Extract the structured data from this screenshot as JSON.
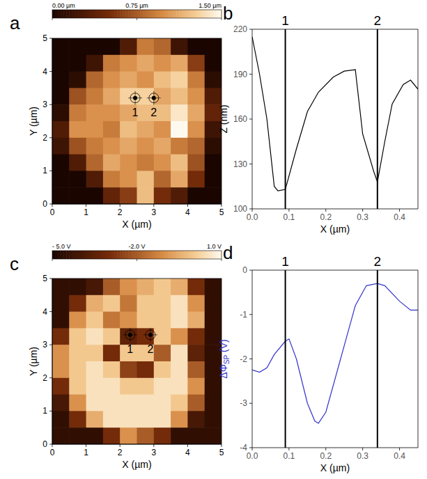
{
  "chart_data": [
    {
      "type": "heatmap",
      "panel": "a",
      "x_label": "X (µm)",
      "y_label": "Y (µm)",
      "xlim": [
        0,
        5
      ],
      "ylim": [
        0,
        5
      ],
      "xticks": [
        0,
        1,
        2,
        3,
        4,
        5
      ],
      "yticks": [
        0,
        1,
        2,
        3,
        4,
        5
      ],
      "colorbar": {
        "range": [
          0,
          1.5
        ],
        "ticks": [
          {
            "value": 0,
            "label": "0.00 µm"
          },
          {
            "value": 0.75,
            "label": "0.75 µm"
          },
          {
            "value": 1.5,
            "label": "1.50 µm"
          }
        ]
      },
      "cells": [
        [
          0,
          0,
          0,
          0,
          0.3,
          0.9,
          0.8,
          0.2,
          0,
          0
        ],
        [
          0,
          0,
          0.2,
          0.9,
          1.0,
          1.1,
          1.0,
          1.1,
          0.6,
          0
        ],
        [
          0,
          0.1,
          0.8,
          1.0,
          1.1,
          1.0,
          1.2,
          1.3,
          0.9,
          0.1
        ],
        [
          0,
          0.7,
          0.9,
          1.1,
          1.3,
          1.3,
          1.1,
          1.2,
          1.0,
          0.3
        ],
        [
          0.1,
          0.9,
          1.0,
          1.0,
          1.1,
          1.2,
          1.2,
          1.4,
          1.1,
          0.4
        ],
        [
          0.3,
          1.0,
          1.0,
          0.9,
          1.2,
          1.1,
          1.0,
          1.5,
          1.0,
          0.2
        ],
        [
          0.2,
          0.7,
          0.9,
          1.0,
          1.1,
          1.0,
          1.1,
          0.9,
          0.8,
          0.1
        ],
        [
          0,
          0.3,
          0.8,
          1.1,
          1.0,
          0.9,
          1.0,
          1.2,
          0.7,
          0
        ],
        [
          0,
          0,
          0.3,
          0.9,
          1.0,
          1.2,
          0.8,
          1.1,
          0.5,
          0
        ],
        [
          0,
          0,
          0,
          0.4,
          0.6,
          1.2,
          0.5,
          0.3,
          0,
          0
        ]
      ],
      "markers": [
        {
          "label": "1",
          "x": 2.45,
          "y": 3.2
        },
        {
          "label": "2",
          "x": 3.0,
          "y": 3.2
        }
      ]
    },
    {
      "type": "line",
      "panel": "b",
      "x_label": "X (µm)",
      "y_label": "Z (nm)",
      "color": "#000000",
      "xlim": [
        0,
        0.45
      ],
      "ylim": [
        100,
        220
      ],
      "xticks": [
        {
          "value": 0,
          "label": "0.0"
        },
        0.1,
        0.2,
        0.3,
        0.4
      ],
      "yticks": [
        100,
        130,
        160,
        190,
        220
      ],
      "x": [
        0,
        0.02,
        0.04,
        0.06,
        0.07,
        0.09,
        0.12,
        0.15,
        0.18,
        0.22,
        0.25,
        0.28,
        0.3,
        0.33,
        0.34,
        0.36,
        0.38,
        0.41,
        0.43,
        0.45
      ],
      "values": [
        215,
        190,
        160,
        115,
        112,
        113,
        140,
        165,
        178,
        188,
        192,
        193,
        150,
        125,
        118,
        145,
        170,
        183,
        186,
        180
      ],
      "vlines": [
        {
          "value": 0.09,
          "label": "1"
        },
        {
          "value": 0.34,
          "label": "2"
        }
      ]
    },
    {
      "type": "heatmap",
      "panel": "c",
      "x_label": "X (µm)",
      "y_label": "Y (µm)",
      "xlim": [
        0,
        5
      ],
      "ylim": [
        0,
        5
      ],
      "xticks": [
        0,
        1,
        2,
        3,
        4,
        5
      ],
      "yticks": [
        0,
        1,
        2,
        3,
        4,
        5
      ],
      "colorbar": {
        "range": [
          -5,
          1
        ],
        "ticks": [
          {
            "value": -5,
            "label": "- 5.0 V"
          },
          {
            "value": -2,
            "label": "-2.0 V"
          },
          {
            "value": 1,
            "label": "1.0 V"
          }
        ]
      },
      "cells": [
        [
          -4.5,
          -4.5,
          -4,
          -2,
          -1,
          -0.5,
          0,
          -0.5,
          -3,
          -4.5
        ],
        [
          -4.5,
          -3,
          -0.5,
          0,
          -1.5,
          0,
          0,
          0.5,
          -1,
          -4.5
        ],
        [
          -4.5,
          -1,
          0,
          -1.5,
          -1,
          0,
          0,
          0.5,
          -0.5,
          -4.5
        ],
        [
          -3,
          0,
          0.5,
          0,
          -3.5,
          -3,
          0,
          -1,
          -3,
          -4.5
        ],
        [
          -1,
          0,
          0,
          -3,
          0,
          0,
          -2,
          0.5,
          -3.5,
          -4.5
        ],
        [
          -1,
          0,
          0.5,
          0,
          -2.5,
          -3,
          0,
          0.5,
          -2,
          -4.5
        ],
        [
          -3,
          0,
          0.5,
          0.5,
          0,
          0,
          0.5,
          0.5,
          -1,
          -4.5
        ],
        [
          -4,
          -1,
          0.5,
          0.5,
          0.5,
          0.5,
          0.5,
          0,
          -2,
          -4.5
        ],
        [
          -4.5,
          -3,
          -0.5,
          0.5,
          0.5,
          0.5,
          0.5,
          -1,
          -4,
          -4.5
        ],
        [
          -4.5,
          -4.5,
          -4.5,
          -3,
          -1,
          -2,
          -3,
          -4.5,
          -4.5,
          -4.5
        ]
      ],
      "markers": [
        {
          "label": "1",
          "x": 2.3,
          "y": 3.3
        },
        {
          "label": "2",
          "x": 2.9,
          "y": 3.3
        }
      ]
    },
    {
      "type": "line",
      "panel": "d",
      "x_label": "X (µm)",
      "y_label": "ΔΦ",
      "y_label_sub": "SP",
      "y_label_unit": " (V)",
      "color": "#3333cc",
      "xlim": [
        0,
        0.45
      ],
      "ylim": [
        -4,
        0
      ],
      "xticks": [
        {
          "value": 0,
          "label": "0.0"
        },
        0.1,
        0.2,
        0.3,
        0.4
      ],
      "yticks": [
        -4,
        -3,
        -2,
        -1,
        0
      ],
      "x": [
        0,
        0.02,
        0.04,
        0.06,
        0.09,
        0.1,
        0.12,
        0.15,
        0.17,
        0.18,
        0.2,
        0.24,
        0.28,
        0.31,
        0.34,
        0.36,
        0.4,
        0.43,
        0.45
      ],
      "values": [
        -2.25,
        -2.3,
        -2.2,
        -1.9,
        -1.6,
        -1.55,
        -2.0,
        -3.0,
        -3.4,
        -3.45,
        -3.2,
        -2.0,
        -0.8,
        -0.35,
        -0.3,
        -0.35,
        -0.7,
        -0.9,
        -0.9
      ],
      "vlines": [
        {
          "value": 0.09,
          "label": "1"
        },
        {
          "value": 0.34,
          "label": "2"
        }
      ]
    }
  ]
}
